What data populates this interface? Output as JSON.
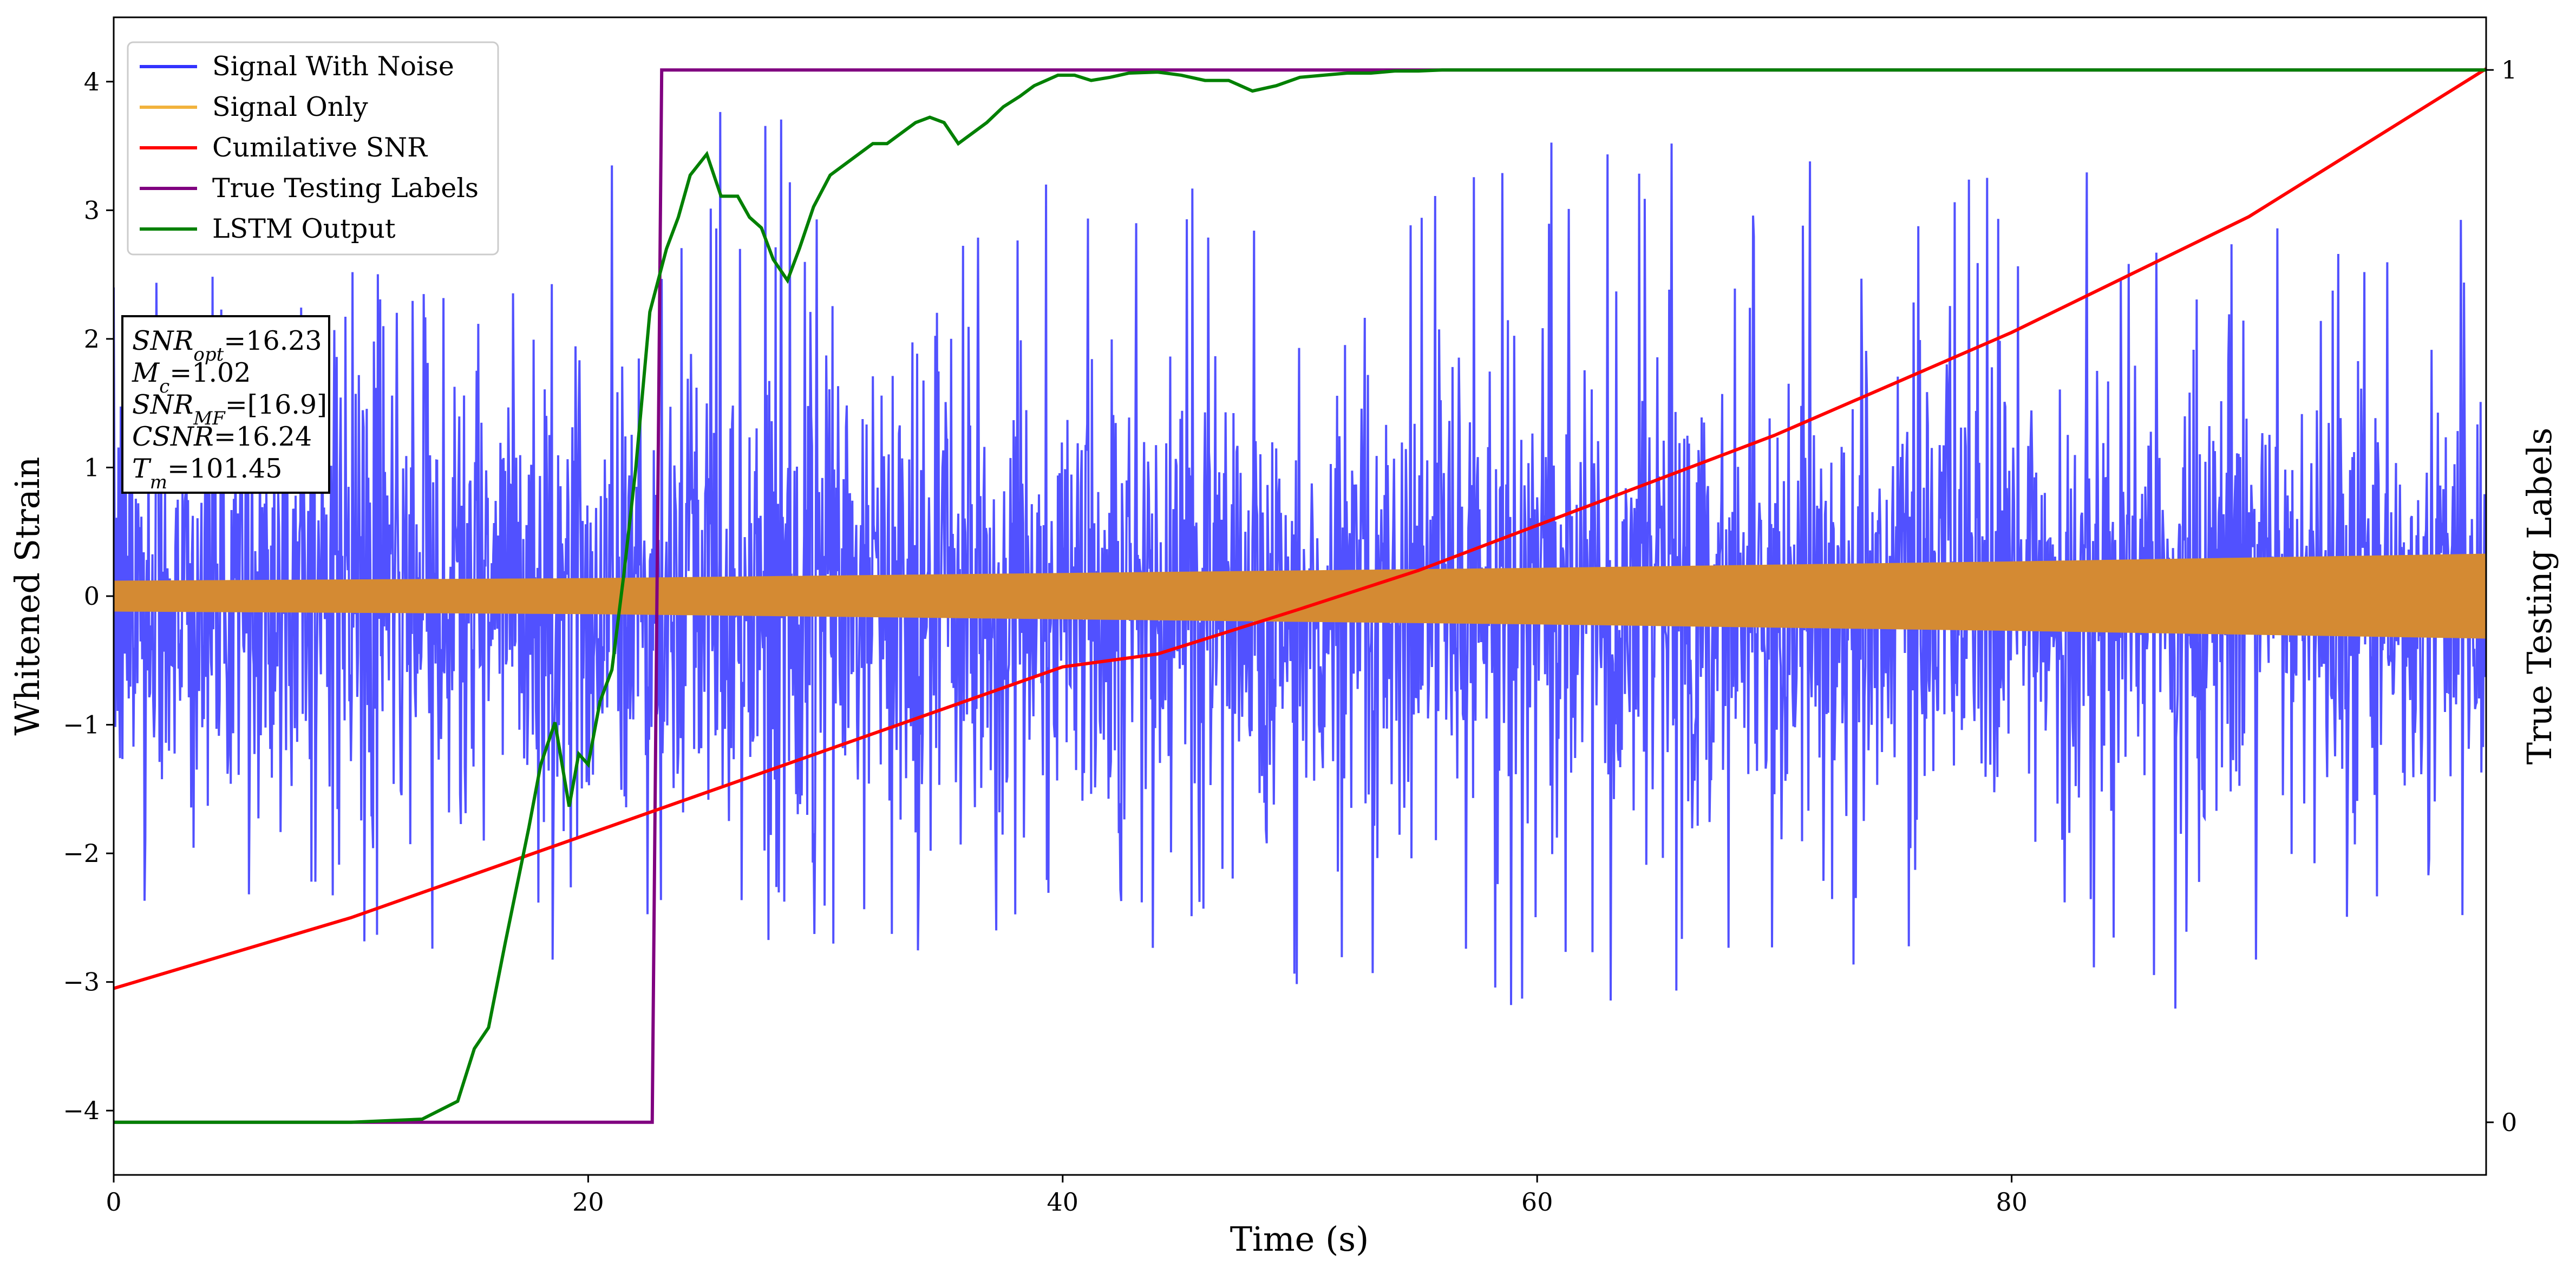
{
  "chart_data": {
    "type": "line",
    "xlabel": "Time (s)",
    "ylabel": "Whitened Strain",
    "ylabel_right": "True Testing Labels",
    "xlim": [
      0,
      100
    ],
    "ylim": [
      -4.5,
      4.5
    ],
    "ylim_right": [
      -0.05,
      1.05
    ],
    "x_ticks": [
      0,
      20,
      40,
      60,
      80
    ],
    "y_ticks": [
      -4,
      -3,
      -2,
      -1,
      0,
      1,
      2,
      3,
      4
    ],
    "y_ticks_right": [
      0,
      1
    ],
    "grid": false,
    "legend_position": "top-left",
    "series": [
      {
        "name": "Signal With Noise",
        "color": "#3333ff",
        "axis": "left",
        "style": "dense noise, approx. ±1 RMS, spikes to about ±4",
        "x": [
          0,
          20,
          21,
          40,
          60,
          80,
          85,
          100
        ],
        "y_upper": [
          2.4,
          2.8,
          4.1,
          3.2,
          3.6,
          3.5,
          3.3,
          3.1
        ],
        "y_lower": [
          -2.8,
          -3.2,
          -2.5,
          -3.0,
          -3.2,
          -3.0,
          -3.6,
          -2.4
        ]
      },
      {
        "name": "Signal Only",
        "color": "#ffa500",
        "axis": "left",
        "style": "chirp envelope, amplitude grows with time",
        "x": [
          0,
          20,
          40,
          60,
          80,
          100
        ],
        "amplitude": [
          0.12,
          0.14,
          0.18,
          0.22,
          0.27,
          0.33
        ]
      },
      {
        "name": "Cumilative SNR",
        "color": "#ff0000",
        "axis": "left",
        "x": [
          0,
          10,
          20,
          30,
          40,
          44,
          50,
          55,
          60,
          70,
          80,
          90,
          100
        ],
        "y": [
          -3.05,
          -2.5,
          -1.85,
          -1.2,
          -0.55,
          -0.45,
          -0.1,
          0.2,
          0.55,
          1.25,
          2.05,
          2.95,
          4.1
        ]
      },
      {
        "name": "True Testing Labels",
        "color": "#800080",
        "axis": "right",
        "x": [
          0,
          22.7,
          23.1,
          100
        ],
        "y": [
          0,
          0,
          1,
          1
        ]
      },
      {
        "name": "LSTM Output",
        "color": "#008000",
        "axis": "right",
        "x": [
          0,
          10,
          13,
          14.5,
          15.2,
          15.8,
          16.5,
          17.5,
          18,
          18.6,
          19.2,
          19.6,
          20,
          20.5,
          21,
          21.5,
          22,
          22.6,
          23.3,
          23.8,
          24.3,
          25,
          25.6,
          26.3,
          26.8,
          27.3,
          27.8,
          28.4,
          28.9,
          29.5,
          30.2,
          30.8,
          31.4,
          32,
          32.6,
          33.2,
          33.8,
          34.4,
          35,
          35.6,
          36.2,
          36.8,
          37.5,
          38.2,
          38.8,
          39.3,
          39.8,
          40.5,
          41.2,
          42,
          42.8,
          44,
          45,
          46,
          47,
          48,
          49,
          50,
          51,
          52,
          53,
          54,
          55,
          56,
          57,
          60,
          70,
          80,
          90,
          100
        ],
        "y": [
          0,
          0,
          0.003,
          0.02,
          0.07,
          0.09,
          0.17,
          0.28,
          0.34,
          0.38,
          0.3,
          0.35,
          0.34,
          0.4,
          0.43,
          0.52,
          0.62,
          0.77,
          0.83,
          0.86,
          0.9,
          0.92,
          0.88,
          0.88,
          0.86,
          0.85,
          0.82,
          0.8,
          0.83,
          0.87,
          0.9,
          0.91,
          0.92,
          0.93,
          0.93,
          0.94,
          0.95,
          0.955,
          0.95,
          0.93,
          0.94,
          0.95,
          0.965,
          0.975,
          0.985,
          0.99,
          0.995,
          0.995,
          0.99,
          0.993,
          0.997,
          0.998,
          0.995,
          0.99,
          0.99,
          0.98,
          0.985,
          0.993,
          0.995,
          0.997,
          0.997,
          0.999,
          0.999,
          1,
          1,
          1,
          1,
          1,
          1,
          1
        ]
      }
    ],
    "annotation": {
      "lines": [
        {
          "main": "SNR",
          "sub": "opt",
          "value": "=16.23"
        },
        {
          "main": "M",
          "sub": "c",
          "value": "=1.02"
        },
        {
          "main": "SNR",
          "sub": "MF",
          "value": "=[16.9]"
        },
        {
          "main": "CSNR",
          "sub": "",
          "value": "=16.24"
        },
        {
          "main": "T",
          "sub": "m",
          "value": "=101.45"
        }
      ]
    }
  }
}
